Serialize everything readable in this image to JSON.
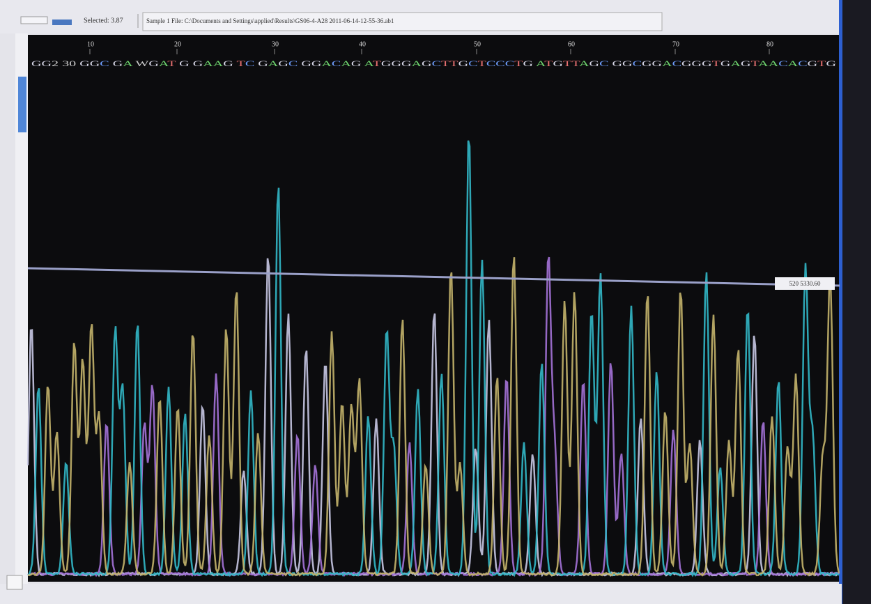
{
  "toolbar": {
    "selected": "Selected: 3.87",
    "sample": "Sample 1  File: C:\\Documents and Settings\\applied\\Results\\GS06-4-A28 2011-06-14-12-55-36.ab1"
  },
  "ruler": {
    "positions": [
      "10",
      "20",
      "30",
      "40",
      "50",
      "60",
      "70",
      "80"
    ]
  },
  "sequence": "GG2 30 GGC GA WGAT G GAAG TC GAGC GGACAG ATGGGAGCTTGCTCCCTG ATGTTAGC GGCGGACGGGTGAGTAACACGTG",
  "threshold": {
    "label": "520 5330.60"
  }
}
